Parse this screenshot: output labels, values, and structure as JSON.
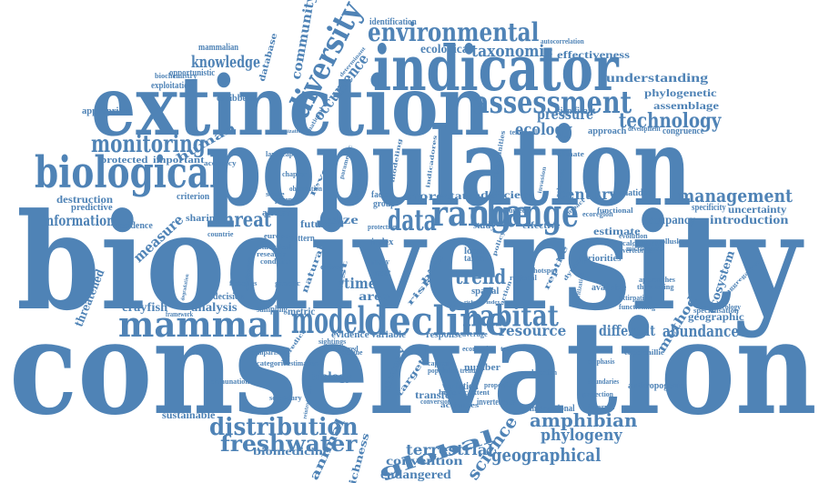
{
  "color": "#4f83b6",
  "words": [
    {
      "text": "biodiversity"
    },
    {
      "text": "conservation"
    },
    {
      "text": "population"
    },
    {
      "text": "extinction"
    },
    {
      "text": "indicator"
    },
    {
      "text": "biological"
    },
    {
      "text": "environmental"
    },
    {
      "text": "diversity"
    },
    {
      "text": "decline"
    },
    {
      "text": "model"
    },
    {
      "text": "mammal"
    },
    {
      "text": "global"
    },
    {
      "text": "change"
    },
    {
      "text": "range"
    },
    {
      "text": "data"
    },
    {
      "text": "assessment"
    },
    {
      "text": "monitoring"
    },
    {
      "text": "human"
    },
    {
      "text": "habitat"
    },
    {
      "text": "technology"
    },
    {
      "text": "distribution"
    },
    {
      "text": "management"
    },
    {
      "text": "occurrence"
    },
    {
      "text": "taxonomic"
    },
    {
      "text": "knowledge"
    },
    {
      "text": "threat"
    },
    {
      "text": "information"
    },
    {
      "text": "measure"
    },
    {
      "text": "trend"
    },
    {
      "text": "resource"
    },
    {
      "text": "amphibian"
    },
    {
      "text": "geographical"
    },
    {
      "text": "phylogeny"
    },
    {
      "text": "freshwater"
    },
    {
      "text": "science"
    },
    {
      "text": "animal"
    },
    {
      "text": "richness"
    },
    {
      "text": "terrestrial"
    },
    {
      "text": "convention"
    },
    {
      "text": "endangered"
    },
    {
      "text": "abundance"
    },
    {
      "text": "different"
    },
    {
      "text": "method"
    },
    {
      "text": "ecosystem"
    },
    {
      "text": "introduction"
    },
    {
      "text": "uncertainty"
    },
    {
      "text": "occupancy"
    },
    {
      "text": "century"
    },
    {
      "text": "ecology"
    },
    {
      "text": "pressure"
    },
    {
      "text": "understanding"
    },
    {
      "text": "phylogenetic"
    },
    {
      "text": "assemblage"
    },
    {
      "text": "effectiveness"
    },
    {
      "text": "ecological"
    },
    {
      "text": "identification"
    },
    {
      "text": "community"
    },
    {
      "text": "database"
    },
    {
      "text": "mammalian"
    },
    {
      "text": "opportunistic"
    },
    {
      "text": "exploitation"
    },
    {
      "text": "appropriate"
    },
    {
      "text": "protected"
    },
    {
      "text": "important"
    },
    {
      "text": "destruction"
    },
    {
      "text": "predictive"
    },
    {
      "text": "threatened"
    },
    {
      "text": "crayfish"
    },
    {
      "text": "analysis"
    },
    {
      "text": "sustainable"
    },
    {
      "text": "biomedicine"
    },
    {
      "text": "biology"
    },
    {
      "text": "history"
    },
    {
      "text": "target"
    },
    {
      "text": "risk"
    },
    {
      "text": "bird"
    },
    {
      "text": "reptile"
    },
    {
      "text": "area"
    },
    {
      "text": "time"
    },
    {
      "text": "list"
    },
    {
      "text": "natural"
    },
    {
      "text": "more"
    },
    {
      "text": "status"
    },
    {
      "text": "deficient"
    },
    {
      "text": "size"
    },
    {
      "text": "series"
    },
    {
      "text": "future"
    },
    {
      "text": "national"
    },
    {
      "text": "indicadores"
    },
    {
      "text": "impact"
    },
    {
      "text": "estimate"
    },
    {
      "text": "specificity"
    },
    {
      "text": "aggregation"
    },
    {
      "text": "geographic"
    },
    {
      "text": "anthropogenic"
    },
    {
      "text": "international"
    },
    {
      "text": "invertebrate"
    },
    {
      "text": "transfer"
    },
    {
      "text": "variation"
    },
    {
      "text": "number"
    },
    {
      "text": "caribbean"
    },
    {
      "text": "african"
    },
    {
      "text": "sharing"
    },
    {
      "text": "countrie"
    },
    {
      "text": "residence"
    },
    {
      "text": "criterion"
    },
    {
      "text": "decision"
    },
    {
      "text": "framework"
    },
    {
      "text": "sampling"
    },
    {
      "text": "metric"
    },
    {
      "text": "predict"
    },
    {
      "text": "spatial"
    },
    {
      "text": "action"
    },
    {
      "text": "available"
    },
    {
      "text": "priorities"
    },
    {
      "text": "approach"
    },
    {
      "text": "development"
    },
    {
      "text": "congruence"
    },
    {
      "text": "significant"
    },
    {
      "text": "autocorrelation"
    },
    {
      "text": "anatidae"
    },
    {
      "text": "effective"
    },
    {
      "text": "study"
    },
    {
      "text": "local"
    },
    {
      "text": "taxon"
    },
    {
      "text": "policy"
    },
    {
      "text": "dynamic"
    },
    {
      "text": "index"
    },
    {
      "text": "many"
    },
    {
      "text": "most"
    },
    {
      "text": "pattern"
    },
    {
      "text": "level"
    },
    {
      "text": "factor"
    },
    {
      "text": "group"
    },
    {
      "text": "response"
    },
    {
      "text": "average"
    },
    {
      "text": "evidence"
    },
    {
      "text": "variable"
    },
    {
      "text": "prioritization"
    },
    {
      "text": "activities"
    },
    {
      "text": "historical"
    },
    {
      "text": "modeling"
    },
    {
      "text": "communities"
    },
    {
      "text": "parametric"
    },
    {
      "text": "accuracy"
    },
    {
      "text": "secondary"
    },
    {
      "text": "categories"
    },
    {
      "text": "defaunation"
    },
    {
      "text": "specialisation"
    },
    {
      "text": "capercaillie"
    },
    {
      "text": "biochemistry"
    },
    {
      "text": "europe"
    },
    {
      "text": "research"
    },
    {
      "text": "statistical"
    },
    {
      "text": "condition"
    },
    {
      "text": "economic"
    },
    {
      "text": "colonization"
    },
    {
      "text": "landscape"
    },
    {
      "text": "climate"
    },
    {
      "text": "planning"
    },
    {
      "text": "vertebrate"
    },
    {
      "text": "functional"
    },
    {
      "text": "sightings"
    },
    {
      "text": "genetic"
    },
    {
      "text": "calculation"
    },
    {
      "text": "extirpation"
    },
    {
      "text": "functioning"
    },
    {
      "text": "determinant"
    },
    {
      "text": "marine"
    },
    {
      "text": "scale"
    },
    {
      "text": "degradation"
    },
    {
      "text": "coexistence"
    },
    {
      "text": "boundaries"
    },
    {
      "text": "fisheries"
    },
    {
      "text": "driver"
    },
    {
      "text": "regional"
    },
    {
      "text": "interval"
    },
    {
      "text": "occupied"
    },
    {
      "text": "proportion"
    },
    {
      "text": "estimation"
    },
    {
      "text": "emphasis"
    },
    {
      "text": "detection"
    },
    {
      "text": "hotspot"
    },
    {
      "text": "richness index"
    },
    {
      "text": "ecoregion"
    },
    {
      "text": "temporal"
    },
    {
      "text": "invasion"
    },
    {
      "text": "selection"
    },
    {
      "text": "protection"
    },
    {
      "text": "observation"
    },
    {
      "text": "potential"
    },
    {
      "text": "hindered"
    },
    {
      "text": "comparison"
    },
    {
      "text": "reintroduction"
    },
    {
      "text": "approaches"
    },
    {
      "text": "threatening"
    },
    {
      "text": "projection"
    },
    {
      "text": "mollusk"
    },
    {
      "text": "macroecology"
    },
    {
      "text": "microcosm"
    },
    {
      "text": "evolution"
    },
    {
      "text": "population trend"
    },
    {
      "text": "tropical"
    },
    {
      "text": "chapter"
    },
    {
      "text": "conversion"
    },
    {
      "text": "extent"
    },
    {
      "text": "capacity"
    },
    {
      "text": "fragment"
    },
    {
      "text": "connection"
    },
    {
      "text": "bayesian"
    },
    {
      "text": "combination"
    },
    {
      "text": "method"
    },
    {
      "text": "region"
    }
  ]
}
